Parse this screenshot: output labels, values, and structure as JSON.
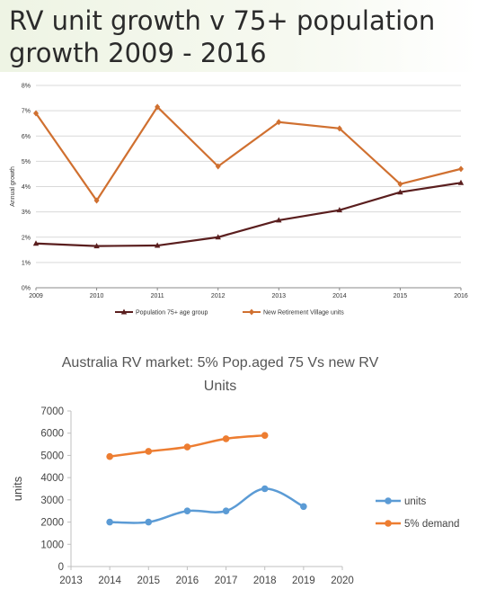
{
  "slide": {
    "title_line1": "RV unit growth v 75+ population",
    "title_line2": "growth 2009 - 2016"
  },
  "chart_data": [
    {
      "type": "line",
      "title": "",
      "xlabel": "",
      "ylabel": "Annual growth",
      "x": [
        2009,
        2010,
        2011,
        2012,
        2013,
        2014,
        2015,
        2016
      ],
      "x_tick_labels": [
        "2009",
        "2010",
        "2011",
        "2012",
        "2013",
        "2014",
        "2015",
        "2016"
      ],
      "y_tick_labels": [
        "0%",
        "1%",
        "2%",
        "3%",
        "4%",
        "5%",
        "6%",
        "7%",
        "8%"
      ],
      "ylim": [
        0,
        8
      ],
      "grid": true,
      "legend": "bottom",
      "series": [
        {
          "name": "Population 75+ age group",
          "color": "#5a1e1e",
          "marker": "triangle",
          "values": [
            1.75,
            1.65,
            1.67,
            2.0,
            2.67,
            3.07,
            3.78,
            4.15
          ]
        },
        {
          "name": "New Retirement Village units",
          "color": "#d07030",
          "marker": "diamond",
          "values": [
            6.9,
            3.45,
            7.15,
            4.8,
            6.55,
            6.3,
            4.1,
            4.7
          ]
        }
      ]
    },
    {
      "type": "line",
      "title": "Australia RV market: 5% Pop.aged 75 Vs new RV Units",
      "title_lines": [
        "Australia RV market: 5% Pop.aged 75 Vs new RV",
        "Units"
      ],
      "xlabel": "",
      "ylabel": "units",
      "xlim": [
        2013,
        2020
      ],
      "ylim": [
        0,
        7000
      ],
      "x_tick_labels": [
        "2013",
        "2014",
        "2015",
        "2016",
        "2017",
        "2018",
        "2019",
        "2020"
      ],
      "y_tick_labels": [
        "0",
        "1000",
        "2000",
        "3000",
        "4000",
        "5000",
        "6000",
        "7000"
      ],
      "grid": false,
      "legend": "right",
      "series": [
        {
          "name": "units",
          "color": "#5b9bd5",
          "x": [
            2014,
            2015,
            2016,
            2017,
            2018,
            2019
          ],
          "values": [
            2000,
            2000,
            2500,
            2500,
            3500,
            2700
          ],
          "smooth": true
        },
        {
          "name": "5% demand",
          "color": "#ed7d31",
          "x": [
            2014,
            2015,
            2016,
            2017,
            2018
          ],
          "values": [
            4950,
            5180,
            5380,
            5750,
            5900
          ],
          "smooth": true
        }
      ]
    }
  ]
}
